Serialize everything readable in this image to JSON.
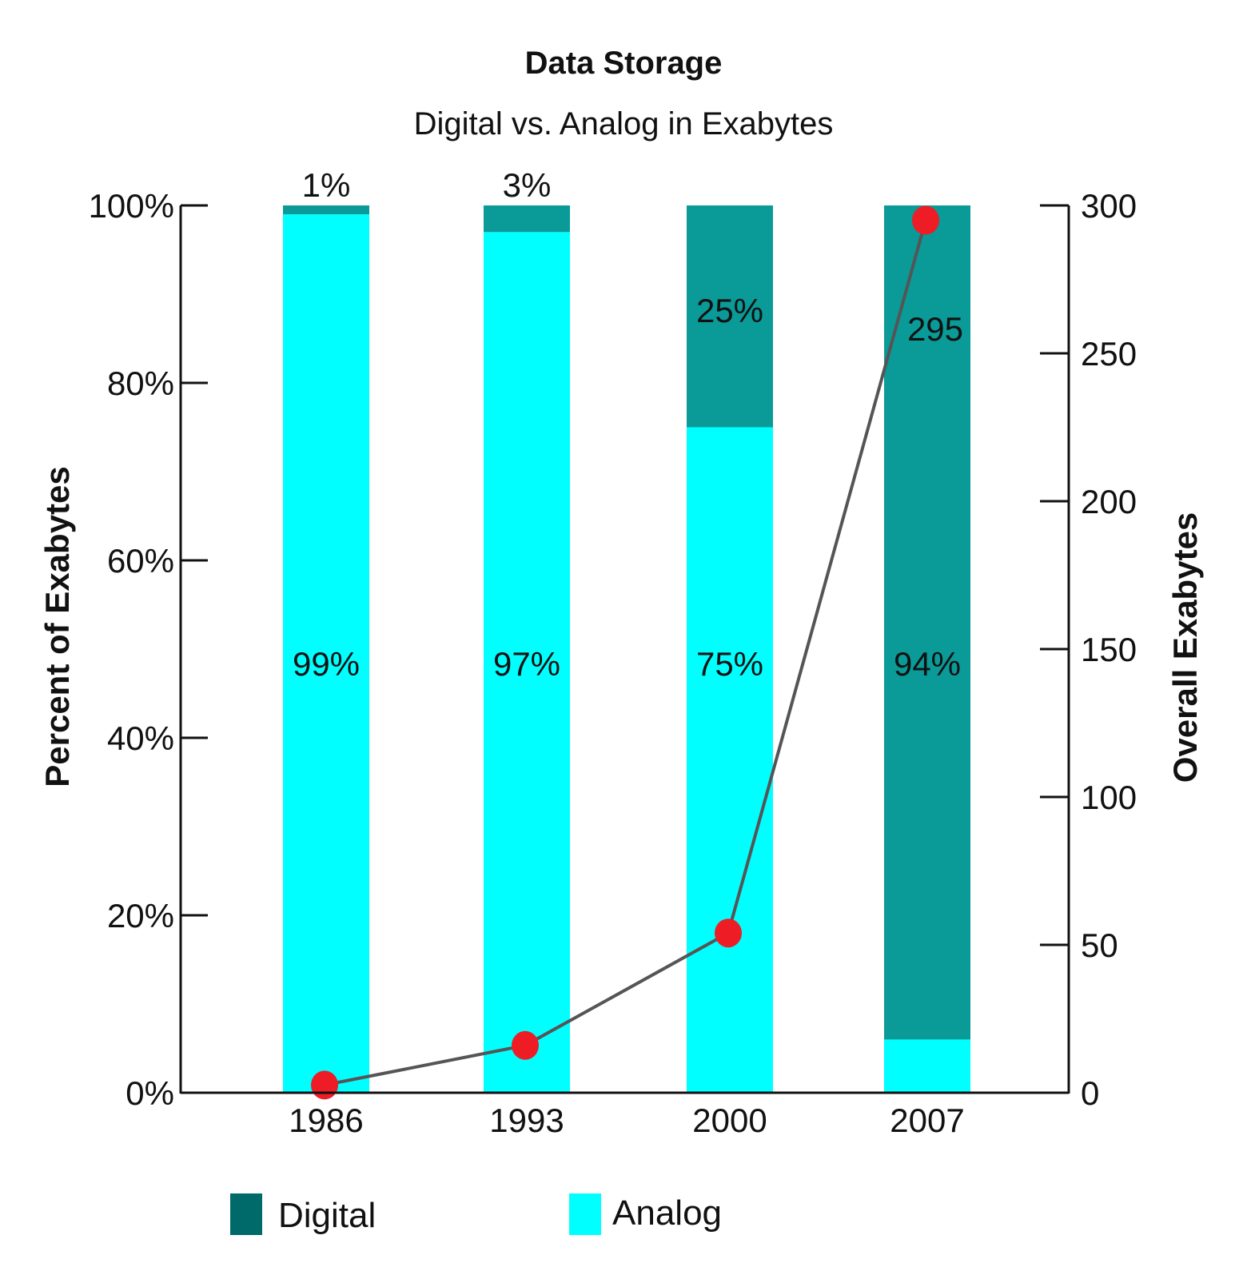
{
  "chart_data": {
    "type": "bar",
    "subtype": "stacked-percent-with-line",
    "title": "Data Storage",
    "subtitle": "Digital vs. Analog in Exabytes",
    "categories": [
      "1986",
      "1993",
      "2000",
      "2007"
    ],
    "series": [
      {
        "name": "Digital",
        "axis": "left",
        "values": [
          1,
          3,
          25,
          94
        ],
        "labels": [
          "1%",
          "3%",
          "25%",
          "94%"
        ],
        "color": "#0a9a98"
      },
      {
        "name": "Analog",
        "axis": "left",
        "values": [
          99,
          97,
          75,
          6
        ],
        "labels": [
          "99%",
          "97%",
          "75%",
          ""
        ],
        "color": "#00ffff"
      },
      {
        "type": "line",
        "axis": "right",
        "values": [
          2.6,
          16,
          54,
          295
        ],
        "labels": [
          "",
          "",
          "",
          "295"
        ],
        "line_color": "#555555",
        "marker_color": "#ee1c25"
      }
    ],
    "left_axis": {
      "label": "Percent of Exabytes",
      "ylim": [
        0,
        100
      ],
      "ticks": [
        0,
        20,
        40,
        60,
        80,
        100
      ],
      "tick_labels": [
        "0%",
        "20%",
        "40%",
        "60%",
        "80%",
        "100%"
      ]
    },
    "right_axis": {
      "label": "Overall Exabytes",
      "ylim": [
        0,
        300
      ],
      "ticks": [
        0,
        50,
        100,
        150,
        200,
        250,
        300
      ],
      "tick_labels": [
        "0",
        "50",
        "100",
        "150",
        "200",
        "250",
        "300"
      ]
    },
    "legend": {
      "position": "bottom",
      "items": [
        {
          "label": "Digital",
          "color": "#006a6a"
        },
        {
          "label": "Analog",
          "color": "#00ffff"
        }
      ]
    },
    "grid": false
  }
}
